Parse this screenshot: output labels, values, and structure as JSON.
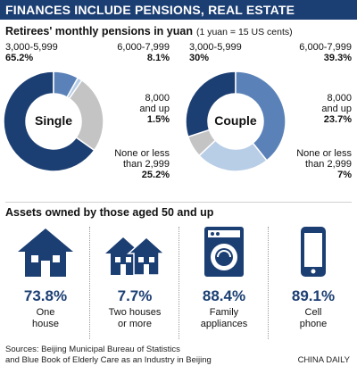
{
  "header": {
    "title": "FINANCES INCLUDE PENSIONS, REAL ESTATE"
  },
  "pensions": {
    "title": "Retirees' monthly pensions in yuan",
    "note": "(1 yuan = 15 US cents)"
  },
  "colors": {
    "navy": "#1c3f73",
    "mid": "#5b82b8",
    "light": "#b8cde6",
    "gray": "#c4c4c4",
    "icon": "#1c3f73"
  },
  "chart_data": [
    {
      "type": "pie",
      "title": "Single",
      "categories": [
        "3,000-5,999",
        "6,000-7,999",
        "8,000 and up",
        "None or less than 2,999"
      ],
      "values": [
        65.2,
        8.1,
        1.5,
        25.2
      ],
      "labels": [
        "65.2%",
        "8.1%",
        "1.5%",
        "25.2%"
      ]
    },
    {
      "type": "pie",
      "title": "Couple",
      "categories": [
        "3,000-5,999",
        "6,000-7,999",
        "8,000 and up",
        "None or less than 2,999"
      ],
      "values": [
        30,
        39.3,
        23.7,
        7
      ],
      "labels": [
        "30%",
        "39.3%",
        "23.7%",
        "7%"
      ]
    },
    {
      "type": "bar",
      "title": "Assets owned by those aged 50 and up",
      "categories": [
        "One house",
        "Two houses or more",
        "Family appliances",
        "Cell phone"
      ],
      "values": [
        73.8,
        7.7,
        88.4,
        89.1
      ],
      "labels": [
        "73.8%",
        "7.7%",
        "88.4%",
        "89.1%"
      ]
    }
  ],
  "left_labels": {
    "a": [
      "3,000-5,999",
      "65.2%"
    ],
    "b": [
      "6,000-7,999",
      "8.1%"
    ],
    "c": [
      "8,000",
      "and up",
      "1.5%"
    ],
    "d": [
      "None or less",
      "than 2,999",
      "25.2%"
    ]
  },
  "right_labels": {
    "a": [
      "3,000-5,999",
      "30%"
    ],
    "b": [
      "6,000-7,999",
      "39.3%"
    ],
    "c": [
      "8,000",
      "and up",
      "23.7%"
    ],
    "d": [
      "None or less",
      "than 2,999",
      "7%"
    ]
  },
  "assets": {
    "title": "Assets owned by those aged 50 and up",
    "items": [
      {
        "pct": "73.8%",
        "line1": "One",
        "line2": "house",
        "icon": "house-icon"
      },
      {
        "pct": "7.7%",
        "line1": "Two houses",
        "line2": "or more",
        "icon": "two-houses-icon"
      },
      {
        "pct": "88.4%",
        "line1": "Family",
        "line2": "appliances",
        "icon": "washing-machine-icon"
      },
      {
        "pct": "89.1%",
        "line1": "Cell",
        "line2": "phone",
        "icon": "cell-phone-icon"
      }
    ]
  },
  "footer": {
    "source_line1": "Sources: Beijing Municipal Bureau of Statistics",
    "source_line2": "and Blue Book of Elderly Care as an Industry in Beijing",
    "credit": "CHINA DAILY"
  }
}
